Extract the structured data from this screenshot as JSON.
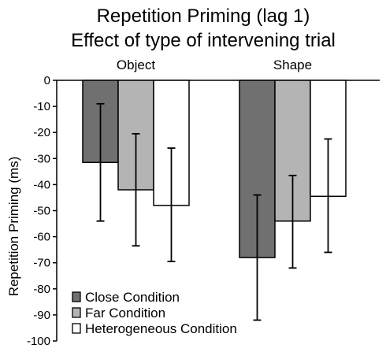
{
  "chart_data": {
    "type": "bar",
    "title": "Repetition Priming (lag 1)",
    "subtitle": "Effect of type of intervening trial",
    "xlabel": "",
    "ylabel": "Repetition Priming (ms)",
    "ylim": [
      -100,
      0
    ],
    "yticks": [
      0,
      -10,
      -20,
      -30,
      -40,
      -50,
      -60,
      -70,
      -80,
      -90,
      -100
    ],
    "grid": false,
    "legend_position": "bottom-left",
    "categories": [
      "Object",
      "Shape"
    ],
    "series": [
      {
        "name": "Close Condition",
        "color": "#707070",
        "values": [
          -31.5,
          -68
        ],
        "error_low": [
          -54,
          -92
        ],
        "error_high": [
          -9,
          -44
        ]
      },
      {
        "name": "Far Condition",
        "color": "#b4b4b4",
        "values": [
          -42,
          -54
        ],
        "error_low": [
          -63.5,
          -72
        ],
        "error_high": [
          -20.5,
          -36.5
        ]
      },
      {
        "name": "Heterogeneous Condition",
        "color": "#ffffff",
        "values": [
          -48,
          -44.5
        ],
        "error_low": [
          -69.5,
          -66
        ],
        "error_high": [
          -26,
          -22.5
        ]
      }
    ]
  }
}
